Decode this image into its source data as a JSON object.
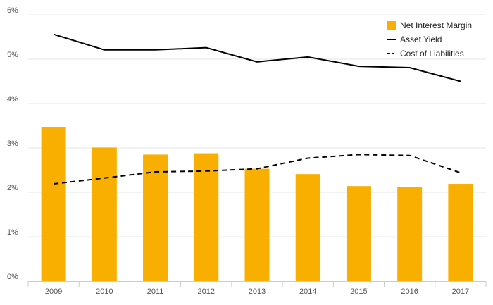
{
  "colors": {
    "bar": "#F9AF00",
    "line": "#000000",
    "grid": "#e6e6e6",
    "axis": "#cccccc",
    "text": "#555555"
  },
  "chart_data": {
    "type": "bar",
    "categories": [
      "2009",
      "2010",
      "2011",
      "2012",
      "2013",
      "2014",
      "2015",
      "2016",
      "2017"
    ],
    "series": [
      {
        "name": "Net Interest Margin",
        "type": "bar",
        "values": [
          3.47,
          3.01,
          2.85,
          2.88,
          2.53,
          2.41,
          2.14,
          2.12,
          2.19
        ]
      },
      {
        "name": "Asset Yield",
        "type": "line",
        "style": "solid",
        "values": [
          5.56,
          5.21,
          5.21,
          5.26,
          4.94,
          5.05,
          4.84,
          4.81,
          4.5
        ]
      },
      {
        "name": "Cost of Liabilities",
        "type": "line",
        "style": "dashed",
        "values": [
          2.19,
          2.32,
          2.46,
          2.48,
          2.53,
          2.77,
          2.85,
          2.83,
          2.44
        ]
      }
    ],
    "yticks": [
      "0%",
      "1%",
      "2%",
      "3%",
      "4%",
      "5%",
      "6%"
    ],
    "ylim": [
      0,
      6
    ],
    "grid": true,
    "legend_position": "top-right"
  }
}
